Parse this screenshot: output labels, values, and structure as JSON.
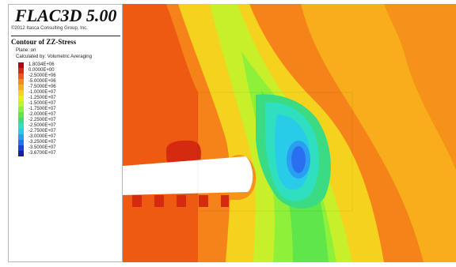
{
  "app": {
    "title": "FLAC3D 5.00",
    "copyright": "©2012 Itasca Consulting Group, Inc."
  },
  "contour": {
    "title": "Contour of ZZ-Stress",
    "plane": "Plane: on",
    "method": "Calculated by: Volumetric Averaging",
    "legend": [
      {
        "label": "1.8034E+06",
        "color": "#b4001c"
      },
      {
        "label": "0.0000E+00",
        "color": "#d62a10"
      },
      {
        "label": "-2.5000E+06",
        "color": "#ee5a12"
      },
      {
        "label": "-5.0000E+06",
        "color": "#f68a16"
      },
      {
        "label": "-7.5000E+06",
        "color": "#f8ae1a"
      },
      {
        "label": "-1.0000E+07",
        "color": "#f5d21e"
      },
      {
        "label": "-1.2500E+07",
        "color": "#e6ee22"
      },
      {
        "label": "-1.5000E+07",
        "color": "#bff32a"
      },
      {
        "label": "-1.7500E+07",
        "color": "#8ff03a"
      },
      {
        "label": "-2.0000E+07",
        "color": "#5ee64a"
      },
      {
        "label": "-2.2500E+07",
        "color": "#3adb82"
      },
      {
        "label": "-2.5000E+07",
        "color": "#2fe0c0"
      },
      {
        "label": "-2.7500E+07",
        "color": "#28cce8"
      },
      {
        "label": "-3.0000E+07",
        "color": "#2a9ef0"
      },
      {
        "label": "-3.2500E+07",
        "color": "#2a6ff0"
      },
      {
        "label": "-3.5000E+07",
        "color": "#1e3edc"
      },
      {
        "label": "-3.6700E+07",
        "color": "#1a1aa8"
      }
    ]
  }
}
